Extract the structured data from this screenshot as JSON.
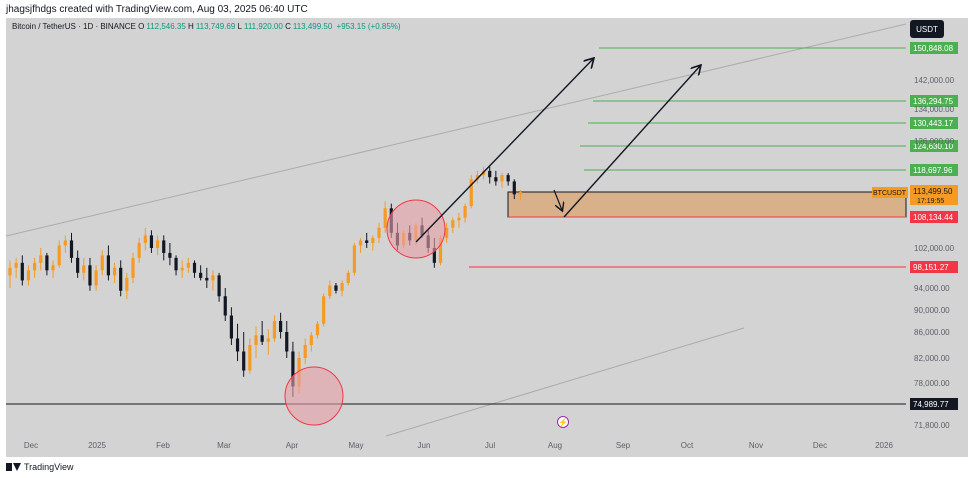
{
  "header": {
    "author_line": "jhagsjfhdgs created with TradingView.com, Aug 03, 2025 06:40 UTC"
  },
  "symbol": {
    "name": "Bitcoin / TetherUS · 1D · BINANCE",
    "open_label": "O",
    "open": "112,546.35",
    "high_label": "H",
    "high": "113,749.69",
    "low_label": "L",
    "low": "111,920.00",
    "close_label": "C",
    "close": "113,499.50",
    "change": "+953.15 (+0.85%)"
  },
  "currency_badge": "USDT",
  "footer": {
    "brand": "TradingView"
  },
  "colors": {
    "background": "#d3d3d3",
    "up": "#f59b23",
    "down": "#131722",
    "support": "#f23645",
    "target": "#4caf50",
    "zone": "#d9a571",
    "price_label": "#f59b23"
  },
  "chart_data": {
    "type": "candlestick",
    "y_axis": {
      "ticks": [
        "142,000.00",
        "134,000.00",
        "126,000.00",
        "102,000.00",
        "94,000.00",
        "90,000.00",
        "86,000.00",
        "82,000.00",
        "78,000.00",
        "71,800.00"
      ]
    },
    "x_axis": {
      "ticks": [
        "Dec",
        "2025",
        "Feb",
        "Mar",
        "Apr",
        "May",
        "Jun",
        "Jul",
        "Aug",
        "Sep",
        "Oct",
        "Nov",
        "Dec",
        "2026"
      ]
    },
    "levels": [
      {
        "label": "150,848.08",
        "kind": "target",
        "value": 150848.08
      },
      {
        "label": "136,294.75",
        "kind": "target",
        "value": 136294.75
      },
      {
        "label": "130,443.17",
        "kind": "target",
        "value": 130443.17
      },
      {
        "label": "124,630.10",
        "kind": "target",
        "value": 124630.1
      },
      {
        "label": "118,697.96",
        "kind": "target",
        "value": 118697.96
      },
      {
        "label": "108,134.44",
        "kind": "support",
        "value": 108134.44
      },
      {
        "label": "98,151.27",
        "kind": "support",
        "value": 98151.27
      },
      {
        "label": "74,989.77",
        "kind": "support",
        "value": 74989.77
      }
    ],
    "current_price": {
      "symbol": "BTCUSDT",
      "price": "113,499.50",
      "countdown": "17:19:55"
    },
    "candles": [
      [
        0,
        96.5,
        99.5,
        94,
        98
      ],
      [
        1,
        98,
        100,
        96,
        99
      ],
      [
        2,
        99,
        100.5,
        94.5,
        95.5
      ],
      [
        3,
        95.5,
        98.5,
        94.5,
        97.5
      ],
      [
        4,
        97.5,
        100,
        96,
        99
      ],
      [
        5,
        99,
        102,
        97.5,
        100.5
      ],
      [
        6,
        100.5,
        101,
        96.5,
        97.5
      ],
      [
        7,
        97.5,
        99.5,
        96,
        98.5
      ],
      [
        8,
        98.5,
        103.5,
        98,
        102.5
      ],
      [
        9,
        102.5,
        104.5,
        101,
        103.5
      ],
      [
        10,
        103.5,
        105,
        99,
        100
      ],
      [
        11,
        100,
        101.5,
        96,
        97
      ],
      [
        12,
        97,
        100,
        95.5,
        98.5
      ],
      [
        13,
        98.5,
        100,
        93.5,
        94.5
      ],
      [
        14,
        94.5,
        98.5,
        93.5,
        97.5
      ],
      [
        15,
        97.5,
        101.5,
        96.5,
        100.5
      ],
      [
        16,
        100.5,
        102.5,
        95.5,
        96.5
      ],
      [
        17,
        96.5,
        99,
        95,
        98
      ],
      [
        18,
        98,
        99.5,
        92.5,
        93.5
      ],
      [
        19,
        93.5,
        97,
        92,
        96
      ],
      [
        20,
        96,
        101,
        95,
        100
      ],
      [
        21,
        100,
        104,
        99,
        103
      ],
      [
        22,
        103,
        106,
        101.5,
        104.5
      ],
      [
        23,
        104.5,
        105.5,
        101,
        102
      ],
      [
        24,
        102,
        104.5,
        100.5,
        103.5
      ],
      [
        25,
        103.5,
        104.5,
        99.5,
        101
      ],
      [
        26,
        101,
        103,
        98.5,
        100
      ],
      [
        27,
        100,
        100.5,
        96.5,
        97.5
      ],
      [
        28,
        97.5,
        99.5,
        96,
        98
      ],
      [
        29,
        98,
        100,
        97,
        99
      ],
      [
        30,
        99,
        99.5,
        96,
        97
      ],
      [
        31,
        97,
        98.5,
        95.5,
        96
      ],
      [
        32,
        96,
        98,
        94,
        95.5
      ],
      [
        33,
        95.5,
        97.5,
        93.5,
        96.5
      ],
      [
        34,
        96.5,
        97,
        91.5,
        92.5
      ],
      [
        35,
        92.5,
        94,
        88,
        89
      ],
      [
        36,
        89,
        90.5,
        84,
        85
      ],
      [
        37,
        85,
        87.5,
        81.5,
        83
      ],
      [
        38,
        83,
        86,
        79,
        80
      ],
      [
        39,
        80,
        85,
        79.5,
        84
      ],
      [
        40,
        84,
        87,
        82,
        85.5
      ],
      [
        41,
        85.5,
        88,
        84,
        84.5
      ],
      [
        42,
        84.5,
        86.5,
        82.5,
        85
      ],
      [
        43,
        85,
        89,
        84.5,
        88
      ],
      [
        44,
        88,
        89.5,
        85,
        86
      ],
      [
        45,
        86,
        88,
        82,
        83
      ],
      [
        46,
        83,
        84.5,
        76,
        77.5
      ],
      [
        47,
        77.5,
        83,
        76.5,
        82
      ],
      [
        48,
        82,
        85,
        81,
        84
      ],
      [
        49,
        84,
        86,
        83,
        85.5
      ],
      [
        50,
        85.5,
        88,
        85,
        87.5
      ],
      [
        51,
        87.5,
        93,
        87,
        92.5
      ],
      [
        52,
        92.5,
        95.5,
        92,
        94.5
      ],
      [
        53,
        94.5,
        95,
        93,
        93.5
      ],
      [
        54,
        93.5,
        95.5,
        92.5,
        95
      ],
      [
        55,
        95,
        97.5,
        94.5,
        97
      ],
      [
        56,
        97,
        103,
        96.5,
        102.5
      ],
      [
        57,
        102.5,
        104,
        101,
        103.5
      ],
      [
        58,
        103.5,
        105,
        102,
        103
      ],
      [
        59,
        103,
        104.5,
        101.5,
        104
      ],
      [
        60,
        104,
        107,
        103,
        106
      ],
      [
        61,
        106,
        111.5,
        105,
        110
      ],
      [
        62,
        110,
        111,
        104,
        105
      ],
      [
        63,
        105,
        107,
        101.5,
        102.5
      ],
      [
        64,
        102.5,
        105.5,
        102,
        105
      ],
      [
        65,
        105,
        106.5,
        102.5,
        103.5
      ],
      [
        66,
        103.5,
        107,
        102.5,
        106.5
      ],
      [
        67,
        106.5,
        108,
        104,
        104.5
      ],
      [
        68,
        104.5,
        105.5,
        101,
        102
      ],
      [
        69,
        102,
        104,
        98,
        99
      ],
      [
        70,
        99,
        104.5,
        98.5,
        104
      ],
      [
        71,
        104,
        107,
        103,
        106
      ],
      [
        72,
        106,
        108,
        105,
        107.5
      ],
      [
        73,
        107.5,
        109,
        106,
        108
      ],
      [
        74,
        108,
        111,
        107,
        110.5
      ],
      [
        75,
        110.5,
        117.5,
        110,
        116.5
      ],
      [
        76,
        116.5,
        118.5,
        115.5,
        117.5
      ],
      [
        77,
        117.5,
        119.5,
        116.5,
        118.5
      ],
      [
        78,
        118.5,
        119.5,
        115.5,
        117
      ],
      [
        79,
        117,
        118.5,
        115,
        116
      ],
      [
        80,
        116,
        118,
        114.5,
        117.5
      ],
      [
        81,
        117.5,
        118,
        115,
        116
      ],
      [
        82,
        116,
        116.5,
        112,
        113
      ],
      [
        83,
        113,
        114,
        111.8,
        113.5
      ]
    ]
  }
}
